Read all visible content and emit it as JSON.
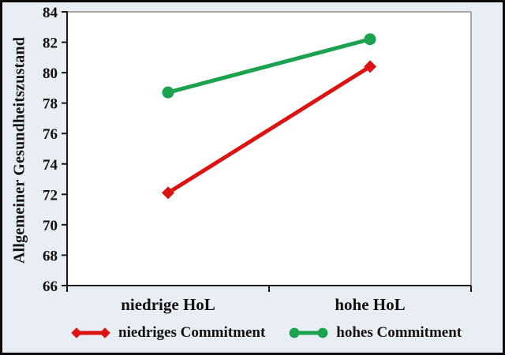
{
  "figure": {
    "background_color": "#e9edf4",
    "frame_border_color": "#0b0b0f",
    "plot_background_color": "#ffffff",
    "axis_color": "#1a1a1a",
    "frame_gray_color": "#8f8f8f",
    "text_color": "#111111"
  },
  "chart_data": {
    "type": "line",
    "title": "",
    "xlabel": "",
    "ylabel": "Allgemeiner Gesundheitszustand",
    "categories": [
      "niedrige HoL",
      "hohe HoL"
    ],
    "series": [
      {
        "name": "niedriges Commitment",
        "color": "#dd1312",
        "marker": "diamond",
        "values": [
          72.1,
          80.4
        ]
      },
      {
        "name": "hohes Commitment",
        "color": "#1aa24e",
        "marker": "circle",
        "values": [
          78.7,
          82.2
        ]
      }
    ],
    "ylim": [
      66,
      84
    ],
    "yticks": [
      66,
      68,
      70,
      72,
      74,
      76,
      78,
      80,
      82,
      84
    ],
    "grid": false,
    "legend_position": "bottom"
  }
}
